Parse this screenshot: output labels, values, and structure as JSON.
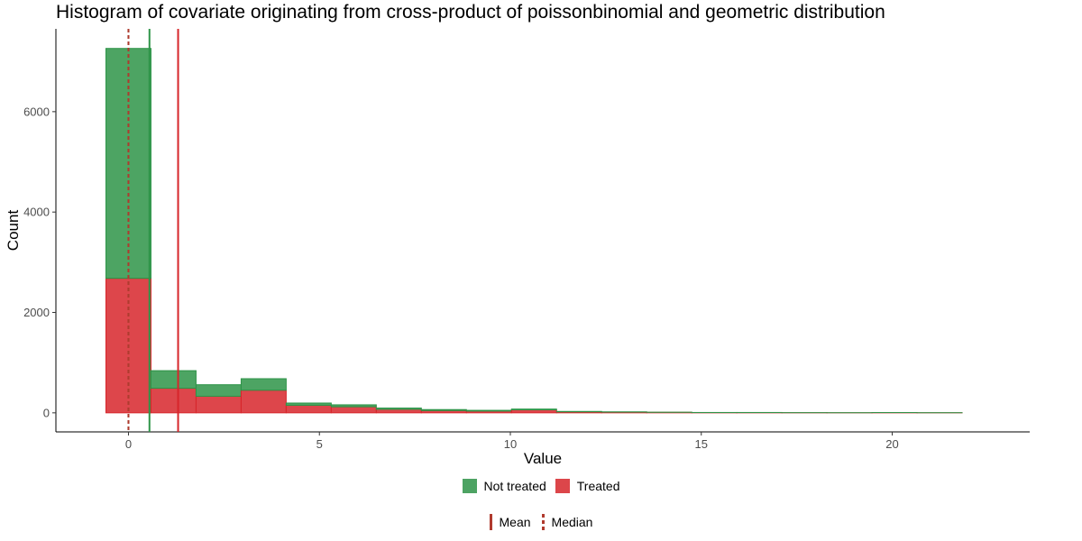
{
  "title": "Histogram of covariate originating from cross-product of poissonbinomial and geometric distribution",
  "chart_data": {
    "type": "bar",
    "stacked": true,
    "title": "Histogram of covariate originating from cross-product of poissonbinomial and geometric distribution",
    "xlabel": "Value",
    "ylabel": "Count",
    "xlim": [
      -1.9,
      23.6
    ],
    "ylim": [
      -380,
      7650
    ],
    "x_ticks": [
      0,
      5,
      10,
      15,
      20
    ],
    "y_ticks": [
      0,
      2000,
      4000,
      6000
    ],
    "bin_edges": [
      -0.59,
      0.59,
      1.77,
      2.95,
      4.13,
      5.31,
      6.49,
      7.67,
      8.85,
      10.03,
      11.21,
      12.39,
      13.57,
      14.75,
      15.93,
      17.11,
      18.29,
      19.47,
      20.65,
      21.83
    ],
    "series": [
      {
        "name": "Not treated",
        "color": "#2e9448",
        "values": [
          4580,
          350,
          230,
          230,
          45,
          40,
          25,
          20,
          15,
          15,
          8,
          5,
          3,
          2,
          2,
          1,
          1,
          1,
          1
        ]
      },
      {
        "name": "Treated",
        "color": "#d7262b",
        "values": [
          2680,
          490,
          330,
          450,
          150,
          120,
          70,
          45,
          35,
          60,
          20,
          15,
          10,
          5,
          5,
          3,
          2,
          5,
          2
        ]
      }
    ],
    "reference_lines": [
      {
        "group": "Not treated",
        "stat": "Mean",
        "x": 0.55,
        "color": "#2e9448"
      },
      {
        "group": "Treated",
        "stat": "Mean",
        "x": 1.3,
        "color": "#d7262b"
      },
      {
        "group": "Not treated",
        "stat": "Median",
        "x": 0,
        "color": "#2e9448"
      },
      {
        "group": "Treated",
        "stat": "Median",
        "x": 0,
        "color": "#b03a2e"
      }
    ]
  },
  "legend": {
    "fill": [
      {
        "label": "Not treated",
        "color": "#2e9448"
      },
      {
        "label": "Treated",
        "color": "#d7262b"
      }
    ],
    "linetype": {
      "mean_label": "Mean",
      "median_label": "Median",
      "color": "#b03a2e"
    }
  }
}
